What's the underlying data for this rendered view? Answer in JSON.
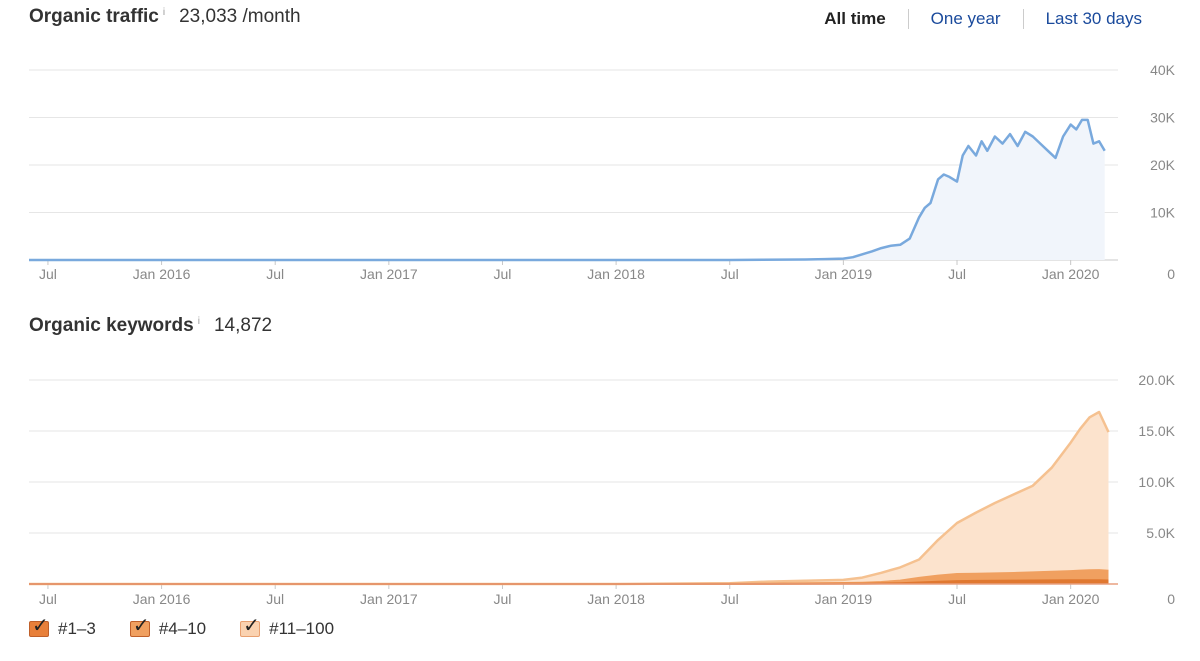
{
  "traffic": {
    "title": "Organic traffic",
    "info_glyph": "i",
    "value": "23,033 /month"
  },
  "range_tabs": [
    {
      "label": "All time",
      "active": true
    },
    {
      "label": "One year",
      "active": false
    },
    {
      "label": "Last 30 days",
      "active": false
    }
  ],
  "keywords": {
    "title": "Organic keywords",
    "info_glyph": "i",
    "value": "14,872"
  },
  "legend": [
    {
      "label": "#1–3",
      "color": "#e8803a"
    },
    {
      "label": "#4–10",
      "color": "#f0a060"
    },
    {
      "label": "#11–100",
      "color": "#fad2b0"
    }
  ],
  "chart_data": [
    {
      "type": "area",
      "title": "Organic traffic",
      "x_tick_labels": [
        "Jul",
        "Jan 2016",
        "Jul",
        "Jan 2017",
        "Jul",
        "Jan 2018",
        "Jul",
        "Jan 2019",
        "Jul",
        "Jan 2020"
      ],
      "x_tick_months": [
        0,
        6,
        12,
        18,
        24,
        30,
        36,
        42,
        48,
        54
      ],
      "y_tick_labels": [
        "0",
        "10K",
        "20K",
        "30K",
        "40K"
      ],
      "ylim": [
        0,
        40000
      ],
      "x_months": [
        0,
        6,
        12,
        18,
        24,
        30,
        36,
        40,
        41,
        42,
        42.5,
        43,
        43.5,
        44,
        44.5,
        45,
        45.5,
        46,
        46.3,
        46.6,
        47,
        47.3,
        47.6,
        48,
        48.3,
        48.6,
        49,
        49.3,
        49.6,
        50,
        50.4,
        50.8,
        51.2,
        51.6,
        52,
        52.4,
        52.8,
        53.2,
        53.6,
        54,
        54.3,
        54.6,
        54.9,
        55.2,
        55.5,
        55.8
      ],
      "values": [
        0,
        0,
        0,
        0,
        0,
        0,
        0,
        100,
        200,
        300,
        600,
        1200,
        1800,
        2500,
        3000,
        3200,
        4500,
        9000,
        11000,
        12000,
        17000,
        18000,
        17500,
        16500,
        22000,
        24000,
        22000,
        25000,
        23000,
        26000,
        24500,
        26500,
        24000,
        27000,
        26000,
        24500,
        23000,
        21500,
        26000,
        28500,
        27500,
        29500,
        29500,
        24500,
        25000,
        23000
      ],
      "color": "#79a9dd",
      "fill": "#f1f5fb",
      "grid": true,
      "y_axis_position": "right"
    },
    {
      "type": "area",
      "stacked": true,
      "title": "Organic keywords",
      "x_tick_labels": [
        "Jul",
        "Jan 2016",
        "Jul",
        "Jan 2017",
        "Jul",
        "Jan 2018",
        "Jul",
        "Jan 2019",
        "Jul",
        "Jan 2020"
      ],
      "x_tick_months": [
        0,
        6,
        12,
        18,
        24,
        30,
        36,
        42,
        48,
        54
      ],
      "y_tick_labels": [
        "0",
        "5.0K",
        "10.0K",
        "15.0K",
        "20.0K"
      ],
      "ylim": [
        0,
        20000
      ],
      "x_months": [
        0,
        6,
        12,
        18,
        24,
        30,
        36,
        38,
        40,
        42,
        43,
        44,
        45,
        46,
        47,
        48,
        49,
        50,
        51,
        52,
        53,
        54,
        54.5,
        55,
        55.5,
        56
      ],
      "series": [
        {
          "name": "#1–3",
          "color": "#e07830",
          "values": [
            0,
            0,
            0,
            0,
            0,
            0,
            0,
            0,
            10,
            20,
            30,
            50,
            80,
            150,
            220,
            280,
            300,
            320,
            330,
            340,
            350,
            360,
            360,
            360,
            360,
            340
          ]
        },
        {
          "name": "#4–10",
          "color": "#f0a060",
          "values": [
            0,
            0,
            0,
            0,
            0,
            0,
            20,
            40,
            60,
            80,
            100,
            150,
            250,
            450,
            600,
            700,
            700,
            720,
            750,
            800,
            850,
            900,
            950,
            980,
            1000,
            950
          ]
        },
        {
          "name": "#11–100",
          "color": "#f5c190",
          "fill": "#fce3cd",
          "values": [
            0,
            0,
            0,
            0,
            0,
            0,
            50,
            200,
            250,
            300,
            500,
            900,
            1300,
            1800,
            3500,
            5000,
            6000,
            6900,
            7700,
            8500,
            10200,
            12600,
            13900,
            15000,
            15500,
            13600
          ]
        }
      ],
      "grid": true,
      "y_axis_position": "right"
    }
  ]
}
